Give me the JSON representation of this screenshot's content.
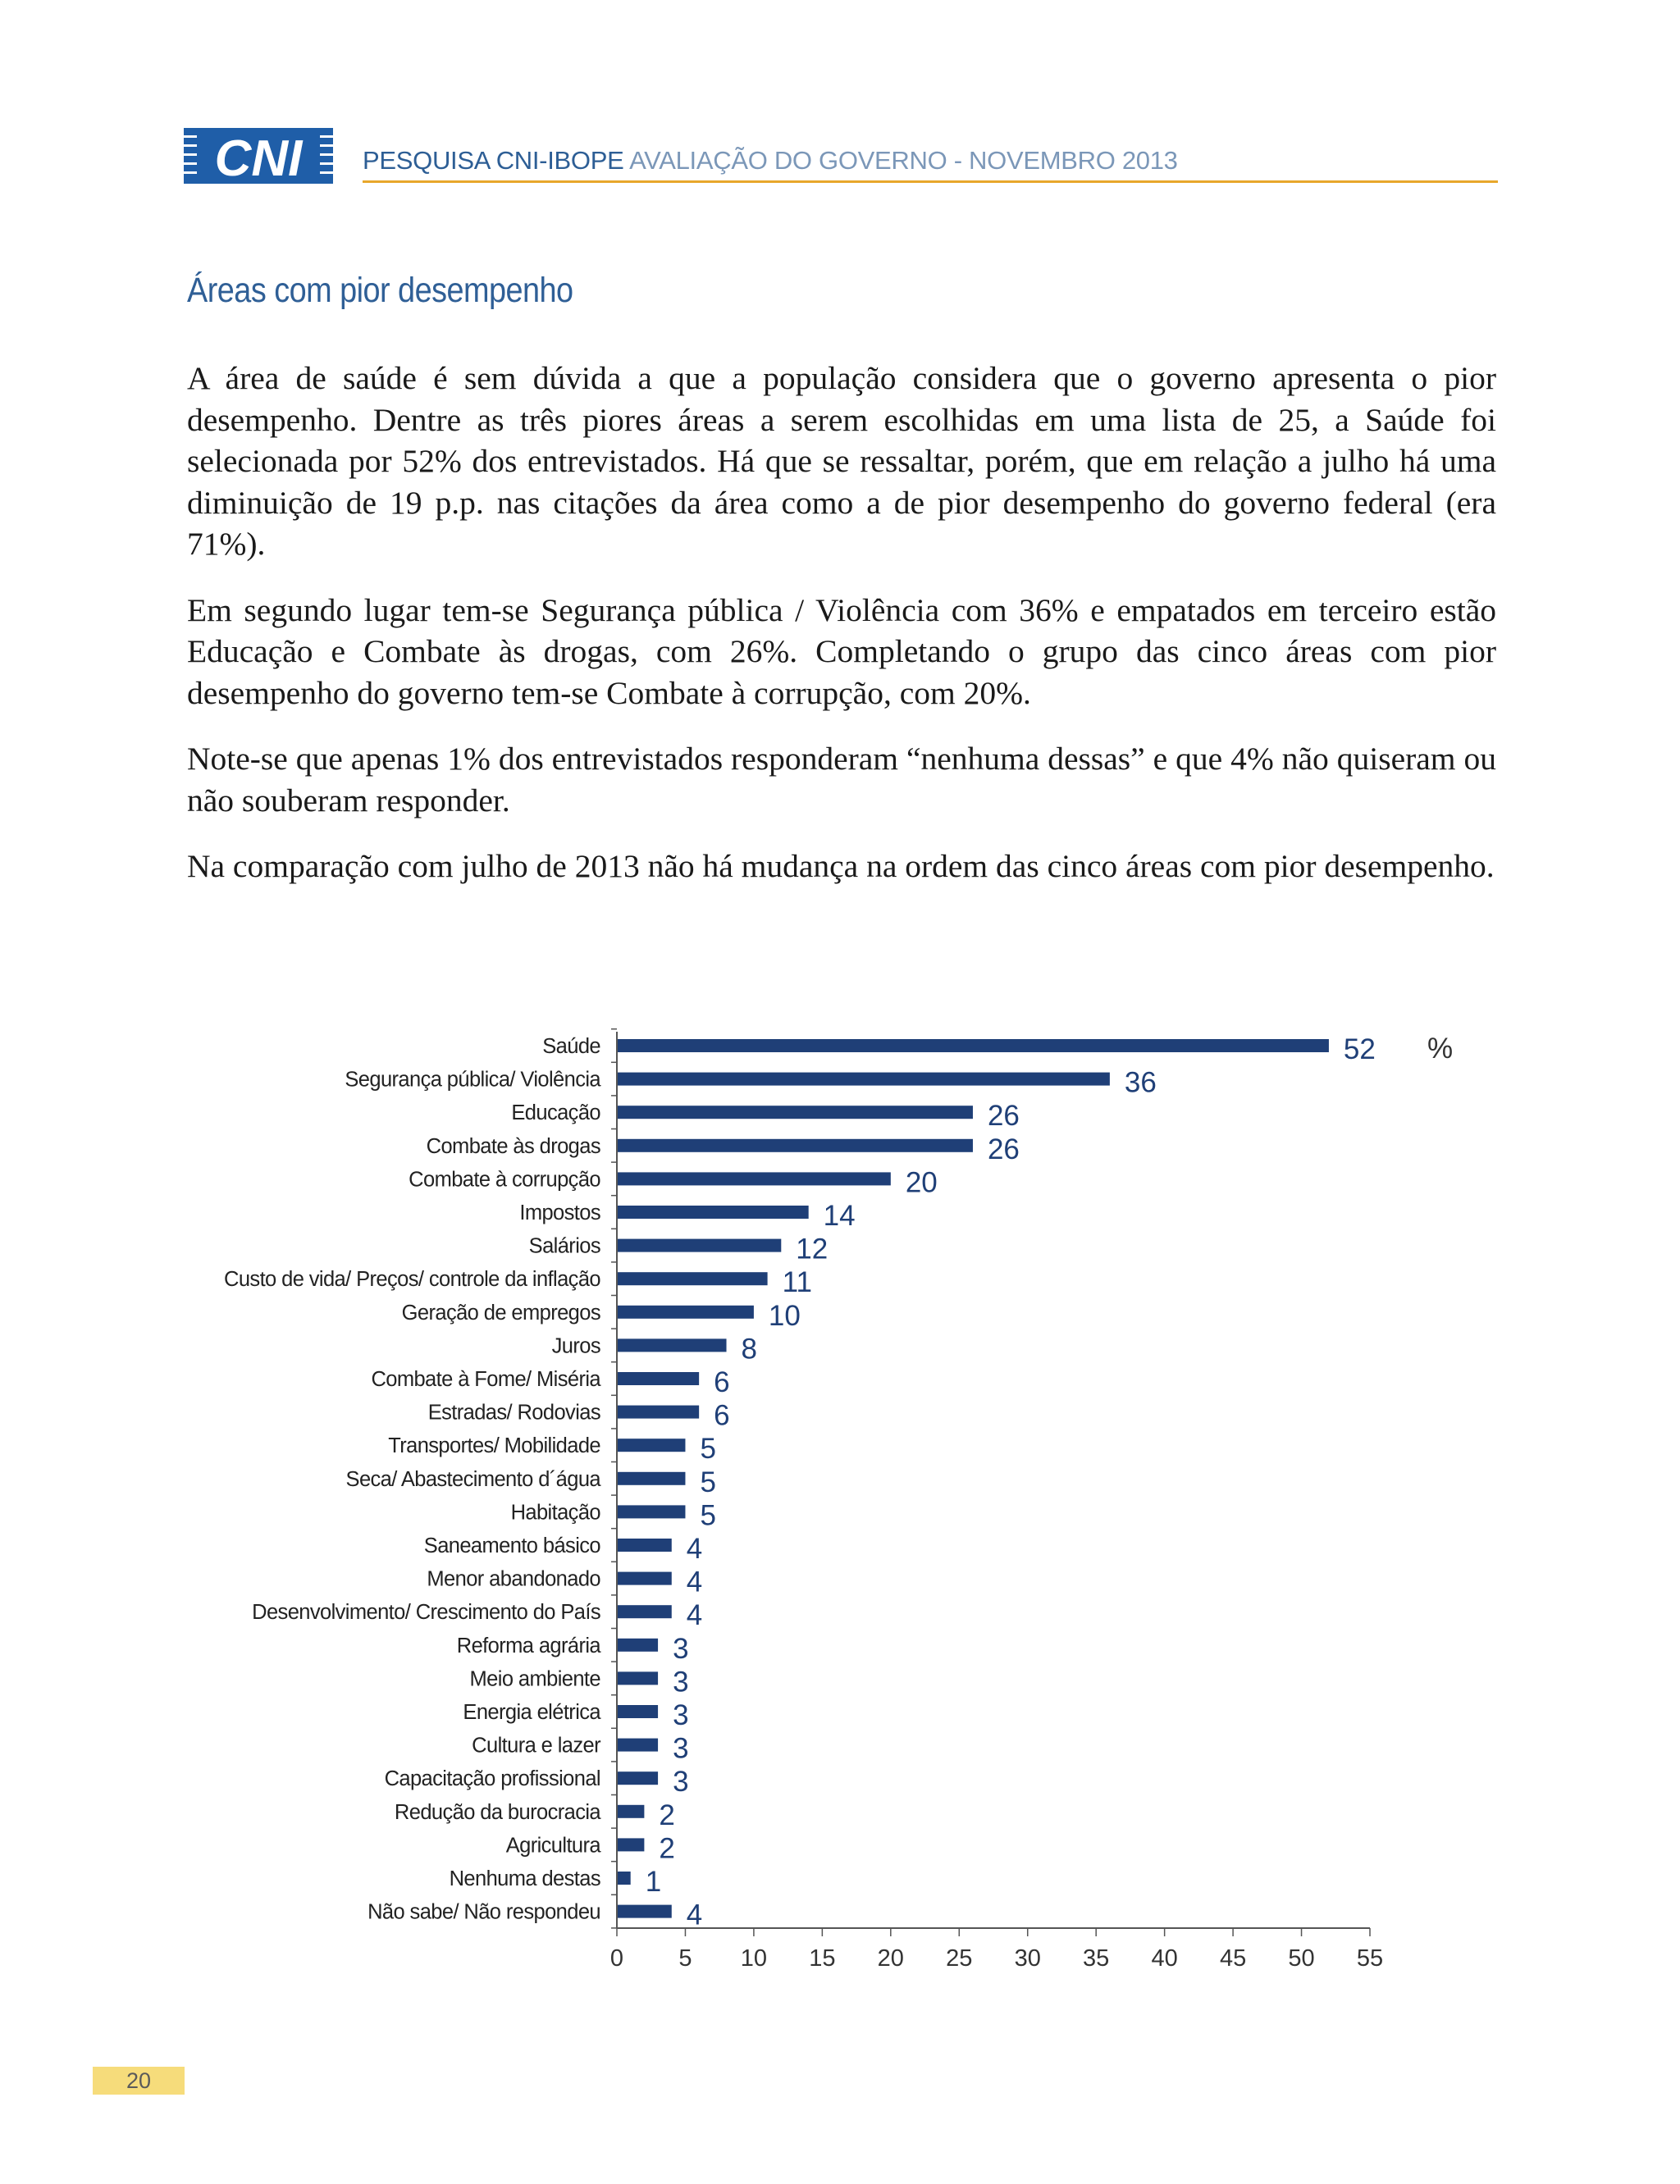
{
  "header": {
    "logo_text": "CNI",
    "title_strong": "PESQUISA CNI-IBOPE",
    "title_light": "AVALIAÇÃO DO GOVERNO - NOVEMBRO 2013"
  },
  "section_title": "Áreas com pior desempenho",
  "paragraphs": [
    "A área de saúde é sem dúvida a que a população considera que o governo apresenta o pior desempenho. Dentre as três piores áreas a serem escolhidas em uma lista de 25, a Saúde foi selecionada por 52% dos entrevistados. Há que se ressaltar, porém, que em relação a julho há uma diminuição de 19 p.p. nas citações da área como a de pior desempenho do governo federal (era 71%).",
    "Em segundo lugar tem-se Segurança pública / Violência com 36% e empatados em terceiro estão Educação e Combate às drogas, com 26%. Completando o grupo das cinco áreas com pior desempenho do governo tem-se Combate à corrupção, com 20%.",
    "Note-se que apenas 1% dos entrevistados responderam “nenhuma dessas” e que 4% não quiseram ou não souberam responder.",
    "Na comparação com julho de 2013 não há mudança na ordem das cinco áreas com pior desempenho."
  ],
  "page_number": "20",
  "colors": {
    "bar": "#1f3f77",
    "value_label": "#1f3f77",
    "accent_rule": "#e8a72b",
    "title": "#2f5f96"
  },
  "chart_data": {
    "type": "bar",
    "orientation": "horizontal",
    "unit_label": "%",
    "categories": [
      "Saúde",
      "Segurança pública/ Violência",
      "Educação",
      "Combate às drogas",
      "Combate à corrupção",
      "Impostos",
      "Salários",
      "Custo de vida/ Preços/ controle da inflação",
      "Geração de empregos",
      "Juros",
      "Combate à Fome/ Miséria",
      "Estradas/ Rodovias",
      "Transportes/ Mobilidade",
      "Seca/ Abastecimento d´água",
      "Habitação",
      "Saneamento básico",
      "Menor abandonado",
      "Desenvolvimento/ Crescimento do País",
      "Reforma agrária",
      "Meio ambiente",
      "Energia elétrica",
      "Cultura e lazer",
      "Capacitação profissional",
      "Redução da burocracia",
      "Agricultura",
      "Nenhuma destas",
      "Não sabe/ Não respondeu"
    ],
    "values": [
      52,
      36,
      26,
      26,
      20,
      14,
      12,
      11,
      10,
      8,
      6,
      6,
      5,
      5,
      5,
      4,
      4,
      4,
      3,
      3,
      3,
      3,
      3,
      2,
      2,
      1,
      4
    ],
    "xlim": [
      0,
      55
    ],
    "xticks": [
      0,
      5,
      10,
      15,
      20,
      25,
      30,
      35,
      40,
      45,
      50,
      55
    ],
    "grid": false,
    "legend": "none"
  }
}
